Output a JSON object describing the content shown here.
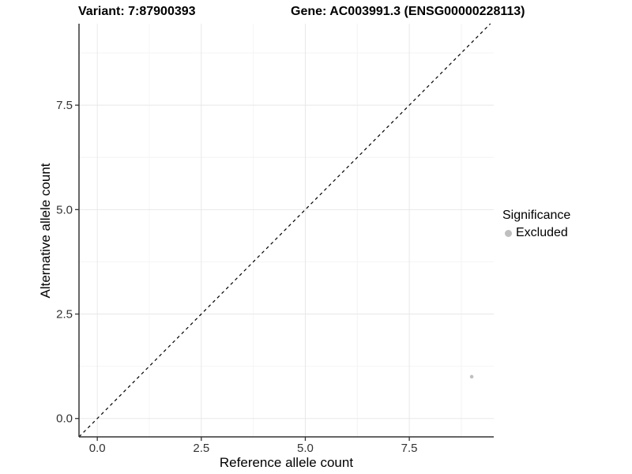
{
  "titles": {
    "variant": "Variant: 7:87900393",
    "gene": "Gene: AC003991.3 (ENSG00000228113)"
  },
  "axes": {
    "x_label": "Reference allele count",
    "y_label": "Alternative allele count"
  },
  "legend": {
    "title": "Significance",
    "items": [
      {
        "label": "Excluded",
        "color": "#bfbfbf"
      }
    ]
  },
  "chart_data": {
    "type": "scatter",
    "title": "Variant: 7:87900393 | Gene: AC003991.3 (ENSG00000228113)",
    "xlabel": "Reference allele count",
    "ylabel": "Alternative allele count",
    "xlim": [
      -0.44,
      9.53
    ],
    "ylim": [
      -0.44,
      9.45
    ],
    "x_ticks": [
      0.0,
      2.5,
      5.0,
      7.5
    ],
    "y_ticks": [
      0.0,
      2.5,
      5.0,
      7.5
    ],
    "x_minor_ticks": [
      1.25,
      3.75,
      6.25,
      8.75
    ],
    "y_minor_ticks": [
      1.25,
      3.75,
      6.25,
      8.75
    ],
    "grid": true,
    "legend_position": "right",
    "series": [
      {
        "name": "Excluded",
        "color": "#bfbfbf",
        "points": [
          {
            "x": 9,
            "y": 1
          }
        ]
      }
    ],
    "reference_line": {
      "type": "identity",
      "slope": 1,
      "intercept": 0,
      "style": "dashed",
      "color": "#000000"
    },
    "colors": {
      "axis_line": "#333333",
      "tick_label": "#333333",
      "grid_major": "#e8e8e8",
      "grid_minor": "#f4f4f4",
      "background": "#ffffff"
    }
  }
}
